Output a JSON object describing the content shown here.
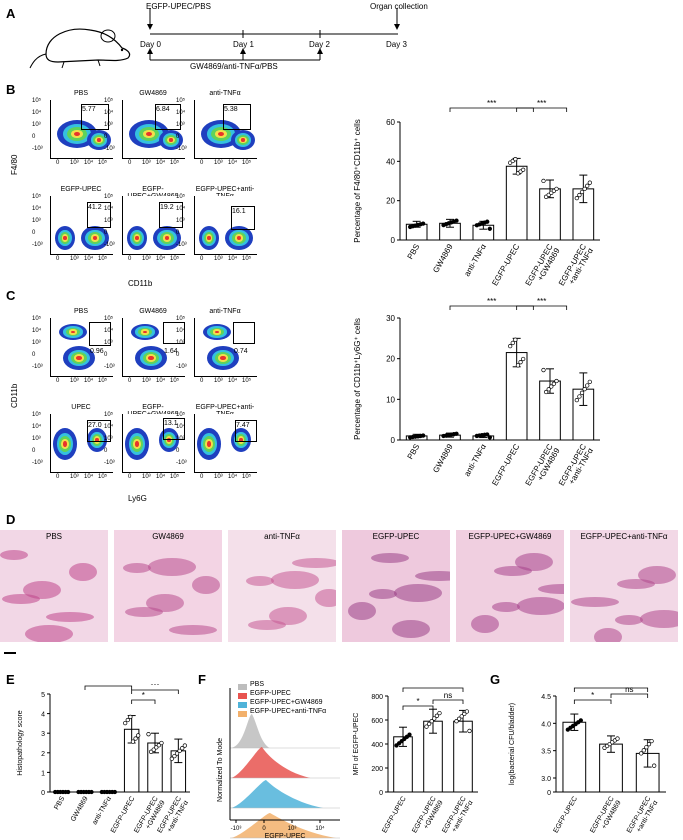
{
  "panels": {
    "A": "A",
    "B": "B",
    "C": "C",
    "D": "D",
    "E": "E",
    "F": "F",
    "G": "G"
  },
  "timeline": {
    "infection": "EGFP-UPEC/PBS",
    "collection": "Organ collection",
    "days": [
      "Day 0",
      "Day 1",
      "Day 2",
      "Day 3"
    ],
    "treatment": "GW4869/anti-TNFα/PBS"
  },
  "facs_B": {
    "ylabel": "F4/80",
    "xlabel": "CD11b",
    "plots": [
      {
        "title": "PBS",
        "value": "5.77"
      },
      {
        "title": "GW4869",
        "value": "6.84"
      },
      {
        "title": "anti-TNFα",
        "value": "5.38"
      },
      {
        "title": "EGFP-UPEC",
        "value": "41.2"
      },
      {
        "title": "EGFP-UPEC+GW4869",
        "value": "19.2"
      },
      {
        "title": "EGFP-UPEC+anti-TNFα",
        "value": "16.1"
      }
    ]
  },
  "facs_C": {
    "ylabel": "CD11b",
    "xlabel": "Ly6G",
    "plots": [
      {
        "title": "PBS",
        "value": "0.96"
      },
      {
        "title": "GW4869",
        "value": "1.64"
      },
      {
        "title": "anti-TNFα",
        "value": "0.74"
      },
      {
        "title": "UPEC",
        "value": "27.0"
      },
      {
        "title": "EGFP-UPEC+GW4869",
        "value": "13.1"
      },
      {
        "title": "EGFP-UPEC+anti-TNFα",
        "value": "7.47"
      }
    ]
  },
  "histology_D": [
    "PBS",
    "GW4869",
    "anti-TNFα",
    "EGFP-UPEC",
    "EGFP-UPEC+GW4869",
    "EGFP-UPEC+anti-TNFα"
  ],
  "hist_F": {
    "legend": [
      "PBS",
      "EGFP-UPEC",
      "EGFP-UPEC+GW4869",
      "EGFP-UPEC+anti-TNFα"
    ],
    "ylabel": "Normalized To Mode",
    "xlabel": "EGFP-UPEC",
    "colors": [
      "#bdbdbd",
      "#e8534f",
      "#4fb3d9",
      "#f2b06b"
    ]
  },
  "chart_data": [
    {
      "type": "bar",
      "panel": "B",
      "categories": [
        "PBS",
        "GW4869",
        "anti-TNFα",
        "EGFP-UPEC",
        "EGFP-UPEC\n+GW4869",
        "EGFP-UPEC\n+anti-TNFα"
      ],
      "values": [
        8,
        8.5,
        7.5,
        37.5,
        26,
        26
      ],
      "errors": [
        1.5,
        2,
        2,
        4,
        4.5,
        7
      ],
      "ylabel": "Percentage of F4/80⁺CD11b⁺ cells",
      "ylim": [
        0,
        60
      ],
      "yticks": [
        0,
        20,
        40,
        60
      ],
      "significance": [
        "***",
        "***"
      ]
    },
    {
      "type": "bar",
      "panel": "C",
      "categories": [
        "PBS",
        "GW4869",
        "anti-TNFα",
        "EGFP-UPEC",
        "EGFP-UPEC\n+GW4869",
        "EGFP-UPEC\n+anti-TNFα"
      ],
      "values": [
        1,
        1.2,
        1,
        21.5,
        14.5,
        12.5
      ],
      "errors": [
        0.4,
        0.5,
        0.4,
        3.5,
        3,
        4
      ],
      "ylabel": "Percentage of CD11b⁺Ly6G⁺ cells",
      "ylim": [
        0,
        30
      ],
      "yticks": [
        0,
        10,
        20,
        30
      ],
      "significance": [
        "***",
        "***"
      ]
    },
    {
      "type": "bar",
      "panel": "E",
      "categories": [
        "PBS",
        "GW4869",
        "anti-TNFα",
        "EGFP-UPEC",
        "EGFP-UPEC\n+GW4869",
        "EGFP-UPEC\n+anti-TNFα"
      ],
      "values": [
        0,
        0,
        0,
        3.2,
        2.5,
        2.1
      ],
      "errors": [
        0,
        0,
        0,
        0.7,
        0.5,
        0.6
      ],
      "ylabel": "Histopathology score",
      "ylim": [
        0,
        5
      ],
      "yticks": [
        0,
        1,
        2,
        3,
        4,
        5
      ],
      "significance": [
        "***",
        "*",
        "***"
      ]
    },
    {
      "type": "bar",
      "panel": "F",
      "categories": [
        "EGFP-UPEC",
        "EGFP-UPEC\n+GW4869",
        "EGFP-UPEC\n+anti-TNFα"
      ],
      "values": [
        460,
        590,
        590
      ],
      "errors": [
        80,
        100,
        90
      ],
      "ylabel": "MFI of EGFP-UPEC",
      "ylim": [
        0,
        800
      ],
      "yticks": [
        0,
        200,
        400,
        600,
        800
      ],
      "significance": [
        "*",
        "ns",
        "*"
      ]
    },
    {
      "type": "bar",
      "panel": "G",
      "categories": [
        "EGFP-UPEC",
        "EGFP-UPEC\n+GW4869",
        "EGFP-UPEC\n+anti-TNFα"
      ],
      "values": [
        4.02,
        3.62,
        3.45
      ],
      "errors": [
        0.15,
        0.15,
        0.25
      ],
      "ylabel": "log(bacterial CFU/bladder)",
      "ylim": [
        0,
        4.5
      ],
      "yticks": [
        0,
        3.0,
        3.5,
        4.0,
        4.5
      ],
      "significance": [
        "*",
        "ns",
        "**"
      ]
    }
  ]
}
